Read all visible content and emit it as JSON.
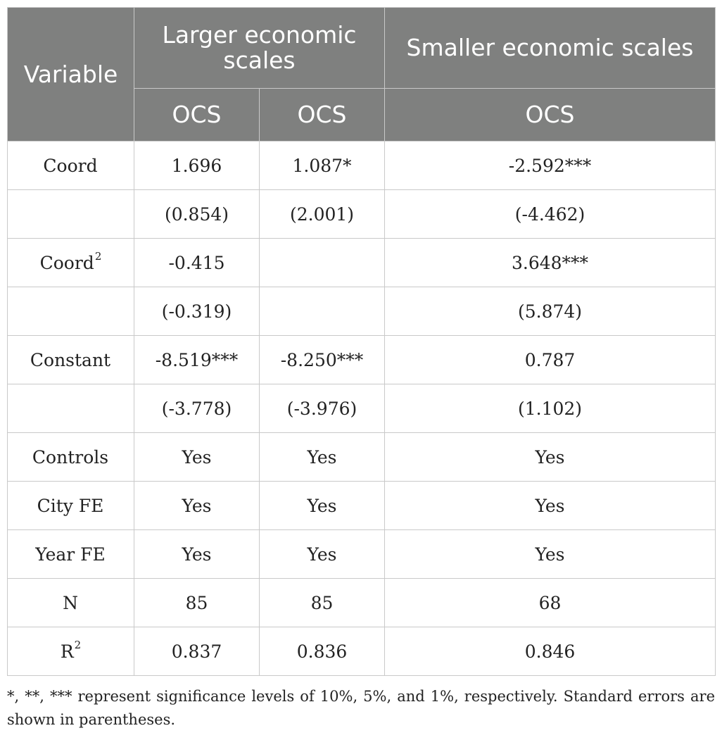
{
  "header": {
    "variable": "Variable",
    "group_large": "Larger economic scales",
    "group_small": "Smaller economic scales",
    "sub_cols": [
      "OCS",
      "OCS",
      "OCS"
    ]
  },
  "rows": [
    {
      "label": "Coord",
      "label_sup": "",
      "c1": "1.696",
      "c2": "1.087*",
      "c3": "-2.592***"
    },
    {
      "label": "",
      "label_sup": "",
      "c1": "(0.854)",
      "c2": "(2.001)",
      "c3": "(-4.462)"
    },
    {
      "label": "Coord",
      "label_sup": "2",
      "c1": "-0.415",
      "c2": "",
      "c3": "3.648***"
    },
    {
      "label": "",
      "label_sup": "",
      "c1": "(-0.319)",
      "c2": "",
      "c3": "(5.874)"
    },
    {
      "label": "Constant",
      "label_sup": "",
      "c1": "-8.519***",
      "c2": "-8.250***",
      "c3": "0.787"
    },
    {
      "label": "",
      "label_sup": "",
      "c1": "(-3.778)",
      "c2": "(-3.976)",
      "c3": "(1.102)"
    },
    {
      "label": "Controls",
      "label_sup": "",
      "c1": "Yes",
      "c2": "Yes",
      "c3": "Yes"
    },
    {
      "label": "City FE",
      "label_sup": "",
      "c1": "Yes",
      "c2": "Yes",
      "c3": "Yes"
    },
    {
      "label": "Year FE",
      "label_sup": "",
      "c1": "Yes",
      "c2": "Yes",
      "c3": "Yes"
    },
    {
      "label": "N",
      "label_sup": "",
      "c1": "85",
      "c2": "85",
      "c3": "68"
    },
    {
      "label": "R",
      "label_sup": "2",
      "c1": "0.837",
      "c2": "0.836",
      "c3": "0.846"
    }
  ],
  "footnote": "*, **, *** represent significance levels of 10%, 5%, and 1%, respectively. Standard errors are shown in parentheses."
}
